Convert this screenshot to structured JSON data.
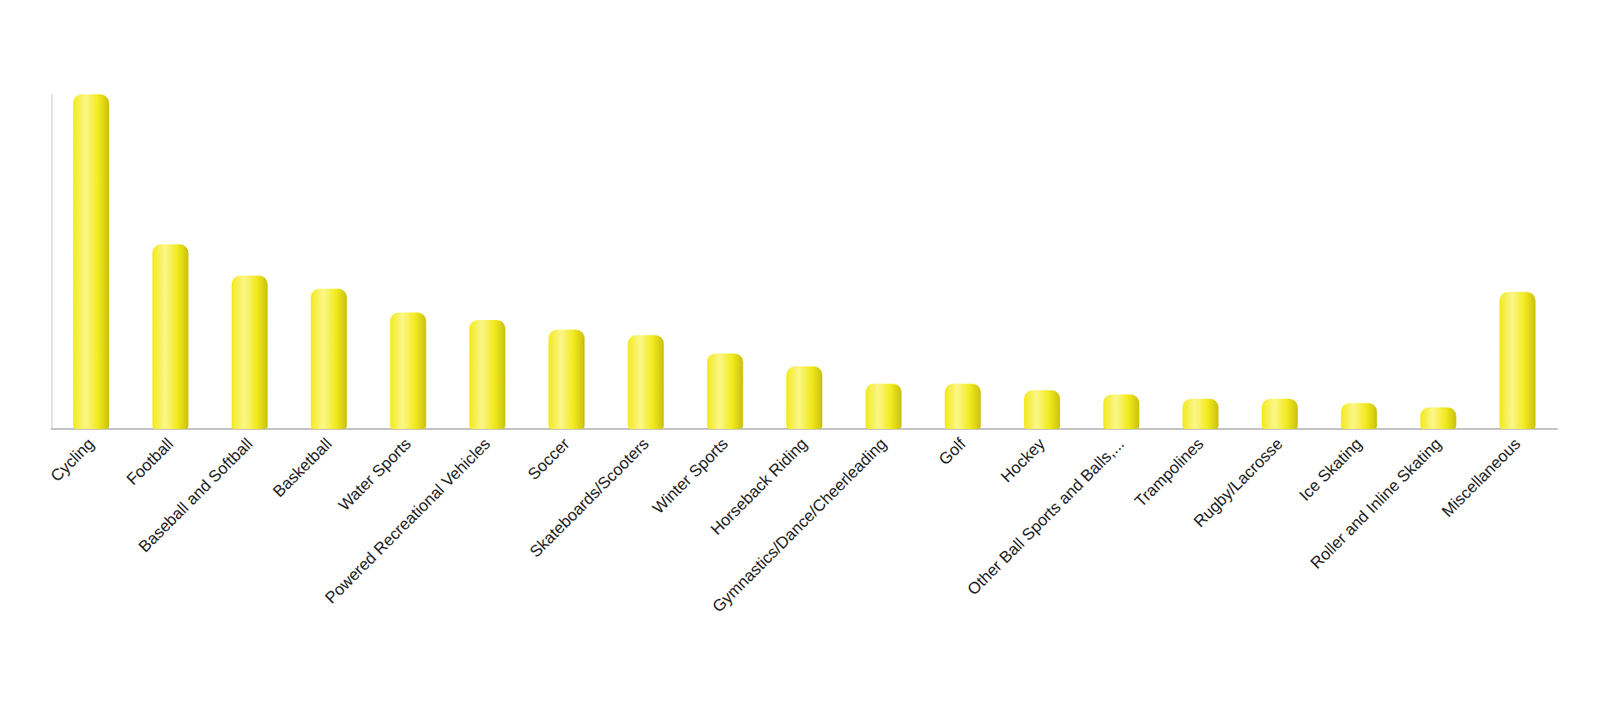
{
  "chart_data": {
    "type": "bar",
    "categories": [
      "Cycling",
      "Football",
      "Baseball and Softball",
      "Basketball",
      "Water Sports",
      "Powered Recreational Vehicles",
      "Soccer",
      "Skateboards/Scooters",
      "Winter Sports",
      "Horseback Riding",
      "Gymnastics/Dance/Cheerleading",
      "Golf",
      "Hockey",
      "Other Ball Sports and Balls,...",
      "Trampolines",
      "Rugby/Lacrosse",
      "Ice Skating",
      "Roller and Inline Skating",
      "Miscellaneous"
    ],
    "values": [
      310,
      171,
      142,
      130,
      108,
      101,
      92,
      87,
      70,
      58,
      42,
      42,
      36,
      32,
      28,
      28,
      24,
      20,
      127
    ],
    "color": "#f2ea1c",
    "ylim": [
      0,
      310
    ],
    "grid": false,
    "tick_labels": "x"
  }
}
